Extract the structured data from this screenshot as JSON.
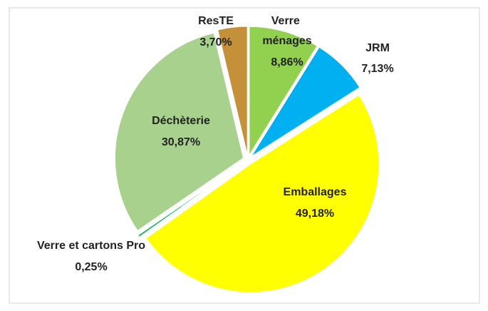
{
  "chart_data": {
    "type": "pie",
    "categories": [
      "Verre ménages",
      "JRM",
      "Emballages",
      "Verre et cartons Pro",
      "Déchèterie",
      "ResTE"
    ],
    "values": [
      8.86,
      7.13,
      49.18,
      0.25,
      30.87,
      3.7
    ],
    "value_labels": [
      "8,86%",
      "7,13%",
      "49,18%",
      "0,25%",
      "30,87%",
      "3,70%"
    ],
    "colors": [
      "#92d050",
      "#00b0f0",
      "#ffff00",
      "#00b050",
      "#a9d18e",
      "#c5903a"
    ]
  }
}
